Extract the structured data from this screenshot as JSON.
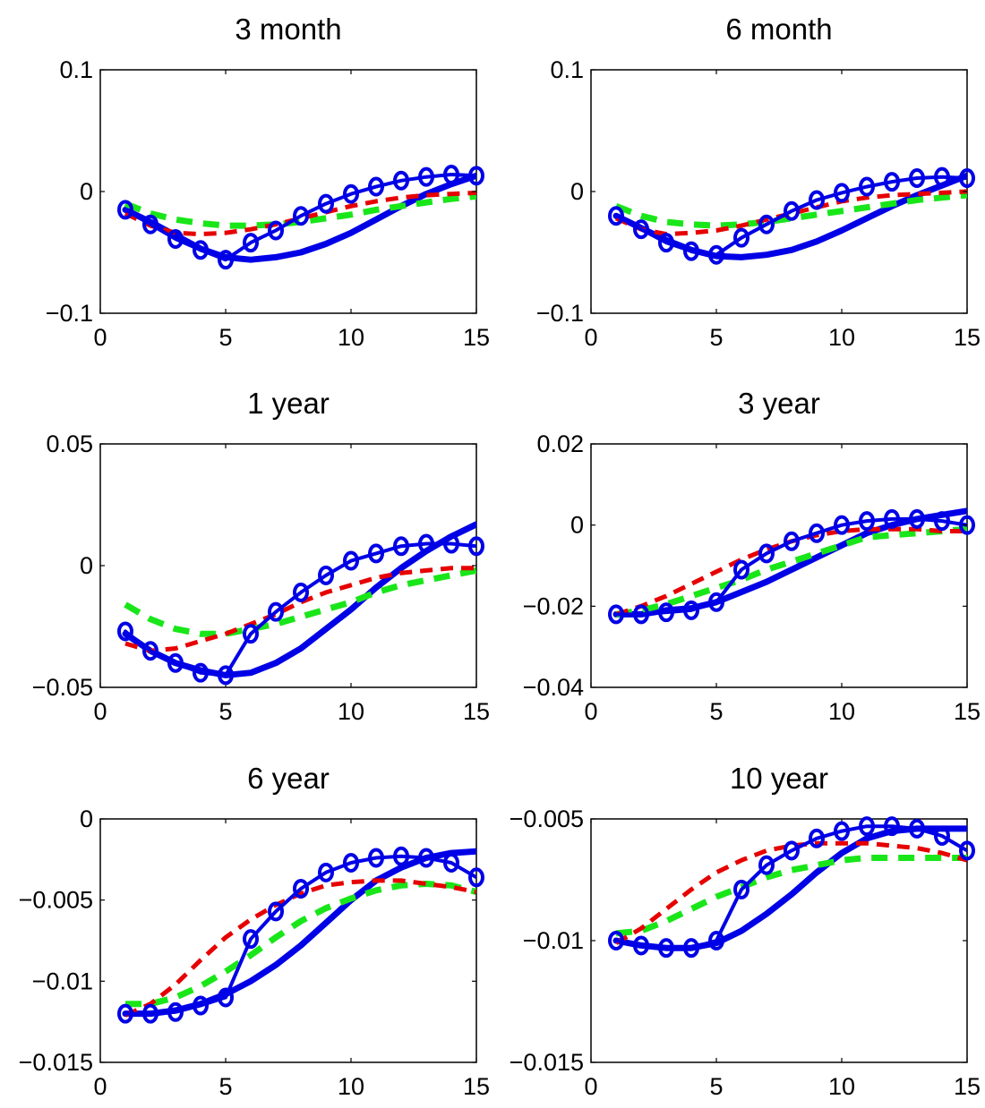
{
  "figure": {
    "background": "#ffffff"
  },
  "styles": {
    "solid": {
      "color": "#0000e6",
      "dash": ""
    },
    "marker": {
      "color": "#0000e6",
      "dash": ""
    },
    "green": {
      "color": "#19e619",
      "dash": "18 12"
    },
    "red": {
      "color": "#e60000",
      "dash": "14 9"
    }
  },
  "chart_data": [
    {
      "type": "line",
      "title": "3 month",
      "xlim": [
        0,
        15
      ],
      "ylim": [
        -0.1,
        0.1
      ],
      "xticks": [
        0,
        5,
        10,
        15
      ],
      "xtick_labels": [
        "0",
        "5",
        "10",
        "15"
      ],
      "yticks": [
        -0.1,
        0,
        0.1
      ],
      "ytick_labels": [
        "−0.1",
        "0",
        "0.1"
      ],
      "x": [
        1,
        2,
        3,
        4,
        5,
        6,
        7,
        8,
        9,
        10,
        11,
        12,
        13,
        14,
        15
      ],
      "series": [
        {
          "style": "solid",
          "values": [
            -0.015,
            -0.025,
            -0.036,
            -0.047,
            -0.054,
            -0.056,
            -0.054,
            -0.05,
            -0.043,
            -0.034,
            -0.023,
            -0.012,
            -0.002,
            0.006,
            0.013
          ]
        },
        {
          "style": "marker",
          "values": [
            -0.015,
            -0.027,
            -0.039,
            -0.048,
            -0.056,
            -0.042,
            -0.032,
            -0.02,
            -0.01,
            -0.002,
            0.004,
            0.009,
            0.012,
            0.014,
            0.013
          ]
        },
        {
          "style": "green",
          "values": [
            -0.01,
            -0.018,
            -0.023,
            -0.026,
            -0.028,
            -0.028,
            -0.027,
            -0.025,
            -0.022,
            -0.019,
            -0.015,
            -0.012,
            -0.009,
            -0.006,
            -0.004
          ]
        },
        {
          "style": "red",
          "values": [
            -0.018,
            -0.028,
            -0.034,
            -0.035,
            -0.034,
            -0.031,
            -0.027,
            -0.022,
            -0.017,
            -0.012,
            -0.008,
            -0.005,
            -0.003,
            -0.002,
            -0.001
          ]
        }
      ]
    },
    {
      "type": "line",
      "title": "6 month",
      "xlim": [
        0,
        15
      ],
      "ylim": [
        -0.1,
        0.1
      ],
      "xticks": [
        0,
        5,
        10,
        15
      ],
      "xtick_labels": [
        "0",
        "5",
        "10",
        "15"
      ],
      "yticks": [
        -0.1,
        0,
        0.1
      ],
      "ytick_labels": [
        "−0.1",
        "0",
        "0.1"
      ],
      "x": [
        1,
        2,
        3,
        4,
        5,
        6,
        7,
        8,
        9,
        10,
        11,
        12,
        13,
        14,
        15
      ],
      "series": [
        {
          "style": "solid",
          "values": [
            -0.02,
            -0.03,
            -0.04,
            -0.048,
            -0.053,
            -0.054,
            -0.052,
            -0.048,
            -0.041,
            -0.032,
            -0.022,
            -0.012,
            -0.003,
            0.005,
            0.013
          ]
        },
        {
          "style": "marker",
          "values": [
            -0.02,
            -0.031,
            -0.042,
            -0.049,
            -0.052,
            -0.038,
            -0.027,
            -0.016,
            -0.007,
            -0.001,
            0.004,
            0.008,
            0.011,
            0.012,
            0.011
          ]
        },
        {
          "style": "green",
          "values": [
            -0.012,
            -0.02,
            -0.025,
            -0.027,
            -0.028,
            -0.027,
            -0.025,
            -0.022,
            -0.019,
            -0.016,
            -0.013,
            -0.01,
            -0.007,
            -0.005,
            -0.003
          ]
        },
        {
          "style": "red",
          "values": [
            -0.022,
            -0.031,
            -0.035,
            -0.034,
            -0.032,
            -0.028,
            -0.023,
            -0.018,
            -0.013,
            -0.008,
            -0.005,
            -0.003,
            -0.002,
            -0.001,
            0.0
          ]
        }
      ]
    },
    {
      "type": "line",
      "title": "1 year",
      "xlim": [
        0,
        15
      ],
      "ylim": [
        -0.05,
        0.05
      ],
      "xticks": [
        0,
        5,
        10,
        15
      ],
      "xtick_labels": [
        "0",
        "5",
        "10",
        "15"
      ],
      "yticks": [
        -0.05,
        0,
        0.05
      ],
      "ytick_labels": [
        "−0.05",
        "0",
        "0.05"
      ],
      "x": [
        1,
        2,
        3,
        4,
        5,
        6,
        7,
        8,
        9,
        10,
        11,
        12,
        13,
        14,
        15
      ],
      "series": [
        {
          "style": "solid",
          "values": [
            -0.028,
            -0.035,
            -0.04,
            -0.043,
            -0.045,
            -0.044,
            -0.04,
            -0.034,
            -0.026,
            -0.018,
            -0.009,
            -0.001,
            0.006,
            0.012,
            0.017
          ]
        },
        {
          "style": "marker",
          "values": [
            -0.027,
            -0.035,
            -0.04,
            -0.044,
            -0.045,
            -0.028,
            -0.019,
            -0.011,
            -0.004,
            0.002,
            0.005,
            0.008,
            0.009,
            0.009,
            0.008
          ]
        },
        {
          "style": "green",
          "values": [
            -0.016,
            -0.022,
            -0.026,
            -0.028,
            -0.028,
            -0.026,
            -0.024,
            -0.021,
            -0.018,
            -0.015,
            -0.011,
            -0.008,
            -0.006,
            -0.004,
            -0.002
          ]
        },
        {
          "style": "red",
          "values": [
            -0.032,
            -0.035,
            -0.034,
            -0.031,
            -0.028,
            -0.024,
            -0.02,
            -0.015,
            -0.011,
            -0.008,
            -0.005,
            -0.003,
            -0.002,
            -0.001,
            -0.001
          ]
        }
      ]
    },
    {
      "type": "line",
      "title": "3 year",
      "xlim": [
        0,
        15
      ],
      "ylim": [
        -0.04,
        0.02
      ],
      "xticks": [
        0,
        5,
        10,
        15
      ],
      "xtick_labels": [
        "0",
        "5",
        "10",
        "15"
      ],
      "yticks": [
        -0.04,
        -0.02,
        0,
        0.02
      ],
      "ytick_labels": [
        "−0.04",
        "−0.02",
        "0",
        "0.02"
      ],
      "x": [
        1,
        2,
        3,
        4,
        5,
        6,
        7,
        8,
        9,
        10,
        11,
        12,
        13,
        14,
        15
      ],
      "series": [
        {
          "style": "solid",
          "values": [
            -0.022,
            -0.022,
            -0.021,
            -0.0205,
            -0.019,
            -0.0165,
            -0.014,
            -0.011,
            -0.008,
            -0.005,
            -0.002,
            0.0,
            0.0015,
            0.0025,
            0.0035
          ]
        },
        {
          "style": "marker",
          "values": [
            -0.022,
            -0.022,
            -0.0215,
            -0.021,
            -0.019,
            -0.011,
            -0.007,
            -0.004,
            -0.002,
            0.0,
            0.001,
            0.0015,
            0.0015,
            0.001,
            0.0
          ]
        },
        {
          "style": "green",
          "values": [
            -0.022,
            -0.021,
            -0.0195,
            -0.0175,
            -0.0155,
            -0.0135,
            -0.011,
            -0.009,
            -0.007,
            -0.005,
            -0.003,
            -0.0025,
            -0.002,
            -0.0015,
            -0.001
          ]
        },
        {
          "style": "red",
          "values": [
            -0.022,
            -0.02,
            -0.0175,
            -0.0145,
            -0.0115,
            -0.0085,
            -0.006,
            -0.004,
            -0.0025,
            -0.0015,
            -0.001,
            -0.001,
            -0.001,
            -0.0015,
            -0.0015
          ]
        }
      ]
    },
    {
      "type": "line",
      "title": "6 year",
      "xlim": [
        0,
        15
      ],
      "ylim": [
        -0.015,
        0
      ],
      "xticks": [
        0,
        5,
        10,
        15
      ],
      "xtick_labels": [
        "0",
        "5",
        "10",
        "15"
      ],
      "yticks": [
        -0.015,
        -0.01,
        -0.005,
        0
      ],
      "ytick_labels": [
        "−0.015",
        "−0.01",
        "−0.005",
        "0"
      ],
      "x": [
        1,
        2,
        3,
        4,
        5,
        6,
        7,
        8,
        9,
        10,
        11,
        12,
        13,
        14,
        15
      ],
      "series": [
        {
          "style": "solid",
          "values": [
            -0.012,
            -0.012,
            -0.0118,
            -0.0114,
            -0.0108,
            -0.01,
            -0.009,
            -0.0078,
            -0.0064,
            -0.005,
            -0.0038,
            -0.003,
            -0.0024,
            -0.0021,
            -0.002
          ]
        },
        {
          "style": "marker",
          "values": [
            -0.012,
            -0.012,
            -0.0119,
            -0.0115,
            -0.011,
            -0.0074,
            -0.0057,
            -0.0043,
            -0.0033,
            -0.0027,
            -0.0024,
            -0.0023,
            -0.0024,
            -0.0027,
            -0.0036
          ]
        },
        {
          "style": "green",
          "values": [
            -0.0114,
            -0.0114,
            -0.011,
            -0.0103,
            -0.0094,
            -0.0084,
            -0.0073,
            -0.0063,
            -0.0055,
            -0.0049,
            -0.0044,
            -0.0041,
            -0.004,
            -0.0041,
            -0.0045
          ]
        },
        {
          "style": "red",
          "values": [
            -0.0121,
            -0.0114,
            -0.0102,
            -0.0087,
            -0.0073,
            -0.0062,
            -0.0053,
            -0.0046,
            -0.0041,
            -0.0039,
            -0.0038,
            -0.0038,
            -0.004,
            -0.0042,
            -0.0045
          ]
        }
      ]
    },
    {
      "type": "line",
      "title": "10 year",
      "xlim": [
        0,
        15
      ],
      "ylim": [
        -0.015,
        -0.005
      ],
      "xticks": [
        0,
        5,
        10,
        15
      ],
      "xtick_labels": [
        "0",
        "5",
        "10",
        "15"
      ],
      "yticks": [
        -0.015,
        -0.01,
        -0.005
      ],
      "ytick_labels": [
        "−0.015",
        "−0.01",
        "−0.005"
      ],
      "x": [
        1,
        2,
        3,
        4,
        5,
        6,
        7,
        8,
        9,
        10,
        11,
        12,
        13,
        14,
        15
      ],
      "series": [
        {
          "style": "solid",
          "values": [
            -0.01,
            -0.0102,
            -0.0103,
            -0.0103,
            -0.0101,
            -0.0096,
            -0.0089,
            -0.0081,
            -0.0072,
            -0.0064,
            -0.0058,
            -0.0055,
            -0.0054,
            -0.0054,
            -0.0054
          ]
        },
        {
          "style": "marker",
          "values": [
            -0.01,
            -0.0102,
            -0.0103,
            -0.0103,
            -0.01,
            -0.0079,
            -0.0069,
            -0.0063,
            -0.0058,
            -0.0055,
            -0.0053,
            -0.0053,
            -0.0054,
            -0.0057,
            -0.0063
          ]
        },
        {
          "style": "green",
          "values": [
            -0.0097,
            -0.0096,
            -0.0092,
            -0.0087,
            -0.0082,
            -0.0078,
            -0.0074,
            -0.0071,
            -0.0069,
            -0.0067,
            -0.0066,
            -0.0066,
            -0.0066,
            -0.0066,
            -0.0066
          ]
        },
        {
          "style": "red",
          "values": [
            -0.0101,
            -0.0095,
            -0.0087,
            -0.0079,
            -0.0072,
            -0.0067,
            -0.0063,
            -0.0061,
            -0.006,
            -0.006,
            -0.006,
            -0.0061,
            -0.0062,
            -0.0064,
            -0.0067
          ]
        }
      ]
    }
  ]
}
